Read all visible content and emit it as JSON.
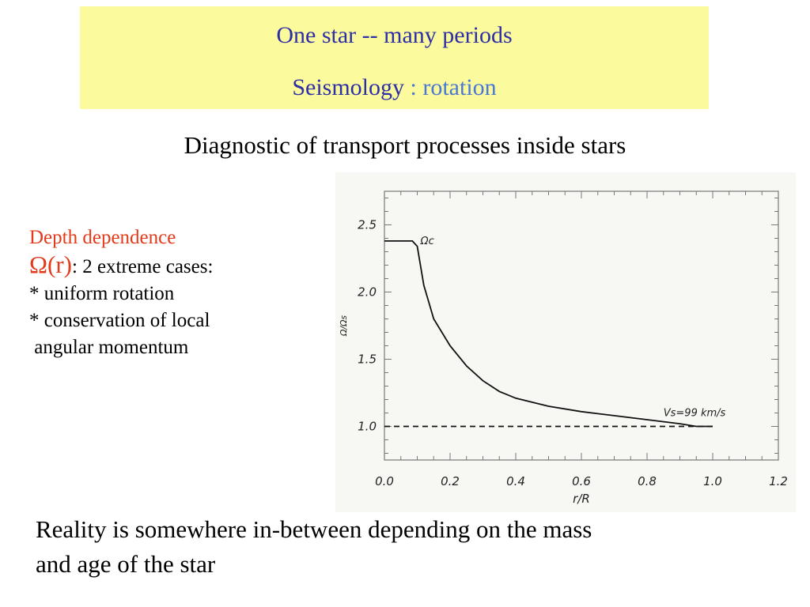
{
  "header": {
    "title": "One star -- many periods",
    "subtitle_main": "Seismology",
    "subtitle_detail": " : rotation"
  },
  "heading": "Diagnostic of transport processes inside stars",
  "left_panel": {
    "line1": "Depth dependence",
    "omega_symbol": "Ω(r)",
    "omega_rest": ": 2 extreme cases:",
    "bullet1": "* uniform rotation",
    "bullet2": "* conservation  of local",
    "bullet3": " angular momentum"
  },
  "conclusion": {
    "line1": "Reality is somewhere in-between depending on the mass",
    "line2": "and age of the star"
  },
  "chart_data": {
    "type": "line",
    "xlabel": "r/R",
    "ylabel": "Ω/Ωs",
    "xlim": [
      0.0,
      1.2
    ],
    "ylim": [
      0.75,
      2.75
    ],
    "x_ticks": [
      "0.0",
      "0.2",
      "0.4",
      "0.6",
      "0.8",
      "1.0",
      "1.2"
    ],
    "y_ticks": [
      "1.0",
      "1.5",
      "2.0",
      "2.5"
    ],
    "grid": false,
    "series": [
      {
        "name": "Ωc",
        "style": "solid",
        "x": [
          0.0,
          0.085,
          0.1,
          0.12,
          0.15,
          0.2,
          0.25,
          0.3,
          0.35,
          0.4,
          0.5,
          0.6,
          0.7,
          0.8,
          0.9,
          0.95,
          1.0
        ],
        "y": [
          2.38,
          2.38,
          2.34,
          2.05,
          1.8,
          1.6,
          1.45,
          1.34,
          1.26,
          1.21,
          1.15,
          1.11,
          1.08,
          1.05,
          1.02,
          1.0,
          1.0
        ]
      },
      {
        "name": "",
        "style": "dashed",
        "x": [
          0.0,
          1.0
        ],
        "y": [
          1.0,
          1.0
        ]
      }
    ],
    "annotations": [
      {
        "text": "Ωc",
        "x": 0.11,
        "y": 2.38
      },
      {
        "text": "Vs=99 km/s",
        "x": 0.85,
        "y": 1.1
      }
    ]
  }
}
